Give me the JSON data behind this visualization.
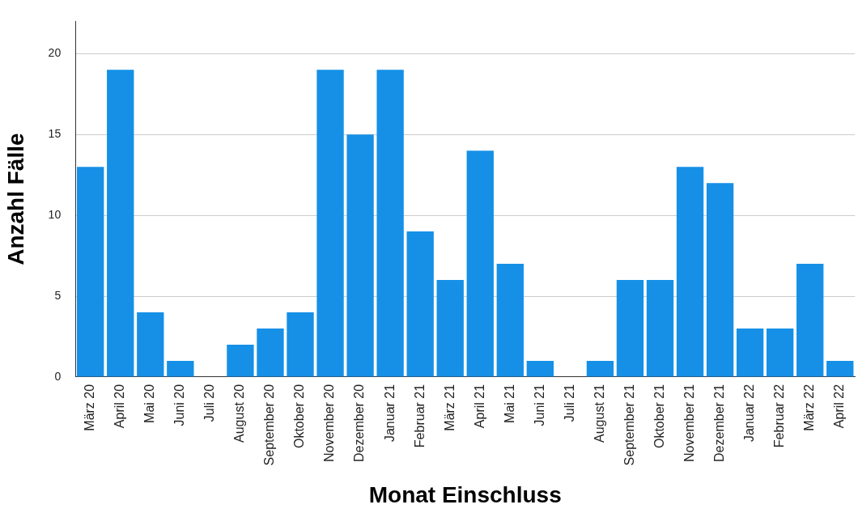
{
  "chart_data": {
    "type": "bar",
    "xlabel": "Monat Einschluss",
    "ylabel": "Anzahl Fälle",
    "categories": [
      "März 20",
      "April 20",
      "Mai 20",
      "Juni 20",
      "Juli 20",
      "August 20",
      "September 20",
      "Oktober 20",
      "November 20",
      "Dezember 20",
      "Januar 21",
      "Februar 21",
      "März 21",
      "April 21",
      "Mai 21",
      "Juni 21",
      "Juli 21",
      "August 21",
      "September 21",
      "Oktober 21",
      "November 21",
      "Dezember 21",
      "Januar 22",
      "Februar 22",
      "März 22",
      "April 22"
    ],
    "values": [
      13,
      19,
      4,
      1,
      0,
      2,
      3,
      4,
      19,
      15,
      19,
      9,
      6,
      14,
      7,
      1,
      0,
      1,
      6,
      6,
      13,
      12,
      3,
      3,
      7,
      1
    ],
    "color": "#1590e6",
    "ylim": [
      0,
      22
    ],
    "yticks": [
      0,
      5,
      10,
      15,
      20
    ],
    "grid": "y"
  }
}
